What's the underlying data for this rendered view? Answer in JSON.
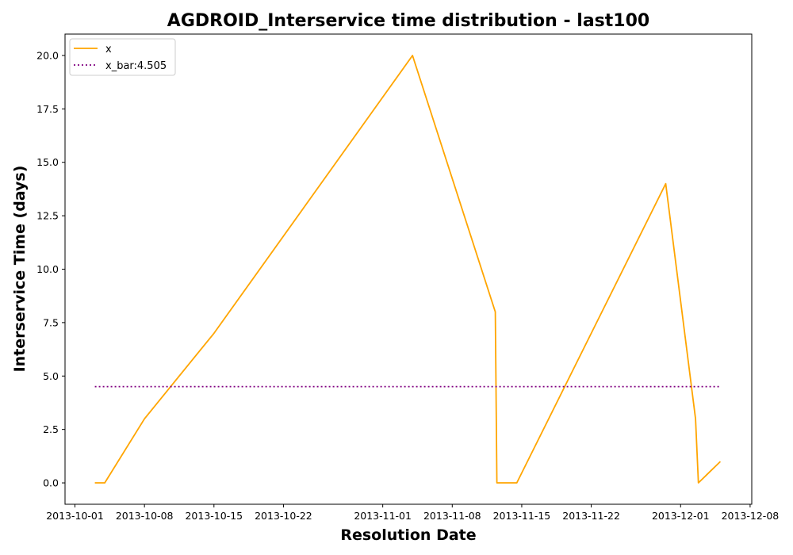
{
  "chart_data": {
    "type": "line",
    "title": "AGDROID_Interservice time distribution - last100",
    "xlabel": "Resolution Date",
    "ylabel": "Interservice Time (days)",
    "x_tick_labels": [
      "2013-10-01",
      "2013-10-08",
      "2013-10-15",
      "2013-10-22",
      "2013-11-01",
      "2013-11-08",
      "2013-11-15",
      "2013-11-22",
      "2013-12-01",
      "2013-12-08"
    ],
    "y_tick_labels": [
      "0.0",
      "2.5",
      "5.0",
      "7.5",
      "10.0",
      "12.5",
      "15.0",
      "17.5",
      "20.0"
    ],
    "x_ticks": [
      "2013-10-01",
      "2013-10-08",
      "2013-10-15",
      "2013-10-22",
      "2013-11-01",
      "2013-11-08",
      "2013-11-15",
      "2013-11-22",
      "2013-12-01",
      "2013-12-08"
    ],
    "y_ticks": [
      0,
      2.5,
      5.0,
      7.5,
      10.0,
      12.5,
      15.0,
      17.5,
      20.0
    ],
    "xlim": [
      "2013-09-30T00:00",
      "2013-12-08T04:00"
    ],
    "ylim": [
      -1.0,
      21.0
    ],
    "grid": false,
    "legend_position": "top-left",
    "series": [
      {
        "name": "x",
        "style": "solid",
        "color": "#ffa500",
        "x": [
          "2013-10-03T00:00",
          "2013-10-04T00:00",
          "2013-10-08T00:00",
          "2013-10-15T00:00",
          "2013-11-04T00:00",
          "2013-11-12T08:00",
          "2013-11-12T12:00",
          "2013-11-14T12:00",
          "2013-11-29T12:00",
          "2013-12-02T12:00",
          "2013-12-02T19:00",
          "2013-12-05T00:00"
        ],
        "y": [
          0,
          0,
          3,
          7,
          20,
          8,
          0,
          0,
          14,
          3,
          0,
          1
        ]
      },
      {
        "name": "x_bar:4.505",
        "style": "dotted",
        "color": "#800080",
        "x": [
          "2013-10-03T00:00",
          "2013-12-05T00:00"
        ],
        "y": [
          4.505,
          4.505
        ]
      }
    ]
  }
}
